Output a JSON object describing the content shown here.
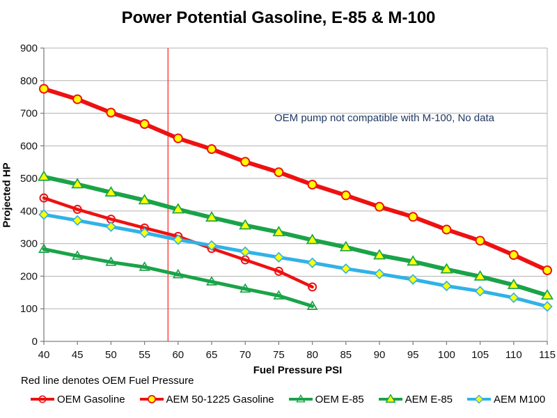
{
  "chart_data": {
    "type": "line",
    "title": "Power Potential Gasoline, E-85 & M-100",
    "xlabel": "Fuel Pressure PSI",
    "ylabel": "Projected HP",
    "annotation": "OEM pump not compatible with M-100, No data",
    "footnote": "Red line denotes OEM Fuel Pressure",
    "xlim": [
      40,
      115
    ],
    "ylim": [
      0,
      900
    ],
    "x_ticks": [
      40,
      45,
      50,
      55,
      60,
      65,
      70,
      75,
      80,
      85,
      90,
      95,
      100,
      105,
      110,
      115
    ],
    "y_ticks": [
      0,
      100,
      200,
      300,
      400,
      500,
      600,
      700,
      800,
      900
    ],
    "grid": "horizontal",
    "legend_position": "bottom",
    "reference_line": {
      "x": 58.5,
      "meaning": "OEM Fuel Pressure",
      "color": "#ff4a4a"
    },
    "colors": {
      "red": "#ee1111",
      "green": "#1aa348",
      "cyan": "#31b2e7",
      "marker_yellow": "#ffff00",
      "grid": "#b3b3b3",
      "axis": "#808080",
      "annotation_text": "#1f3864",
      "text": "#000000"
    },
    "series": [
      {
        "name": "OEM Gasoline",
        "color": "#ee1111",
        "marker": "open-circle",
        "line_width": 4.5,
        "x": [
          40,
          45,
          50,
          55,
          60,
          65,
          70,
          75,
          80
        ],
        "values": [
          440,
          405,
          375,
          348,
          322,
          285,
          250,
          215,
          167
        ]
      },
      {
        "name": "AEM 50-1225 Gasoline",
        "color": "#ee1111",
        "marker": "circle",
        "line_width": 6,
        "x": [
          40,
          45,
          50,
          55,
          60,
          65,
          70,
          75,
          80,
          85,
          90,
          95,
          100,
          105,
          110,
          115
        ],
        "values": [
          775,
          743,
          702,
          667,
          623,
          590,
          551,
          519,
          481,
          448,
          413,
          382,
          343,
          309,
          265,
          218
        ]
      },
      {
        "name": "OEM E-85",
        "color": "#1aa348",
        "marker": "open-triangle",
        "line_width": 5,
        "x": [
          40,
          45,
          50,
          55,
          60,
          65,
          70,
          75,
          80
        ],
        "values": [
          283,
          262,
          243,
          228,
          205,
          183,
          161,
          140,
          108
        ]
      },
      {
        "name": "AEM E-85",
        "color": "#1aa348",
        "marker": "triangle",
        "line_width": 6,
        "x": [
          40,
          45,
          50,
          55,
          60,
          65,
          70,
          75,
          80,
          85,
          90,
          95,
          100,
          105,
          110,
          115
        ],
        "values": [
          505,
          482,
          457,
          433,
          405,
          380,
          356,
          335,
          311,
          289,
          264,
          245,
          221,
          199,
          173,
          141
        ]
      },
      {
        "name": "AEM M100",
        "color": "#31b2e7",
        "marker": "diamond",
        "line_width": 5,
        "x": [
          40,
          45,
          50,
          55,
          60,
          65,
          70,
          75,
          80,
          85,
          90,
          95,
          100,
          105,
          110,
          115
        ],
        "values": [
          389,
          371,
          352,
          333,
          312,
          294,
          275,
          258,
          241,
          223,
          207,
          190,
          170,
          154,
          134,
          107
        ]
      }
    ]
  }
}
